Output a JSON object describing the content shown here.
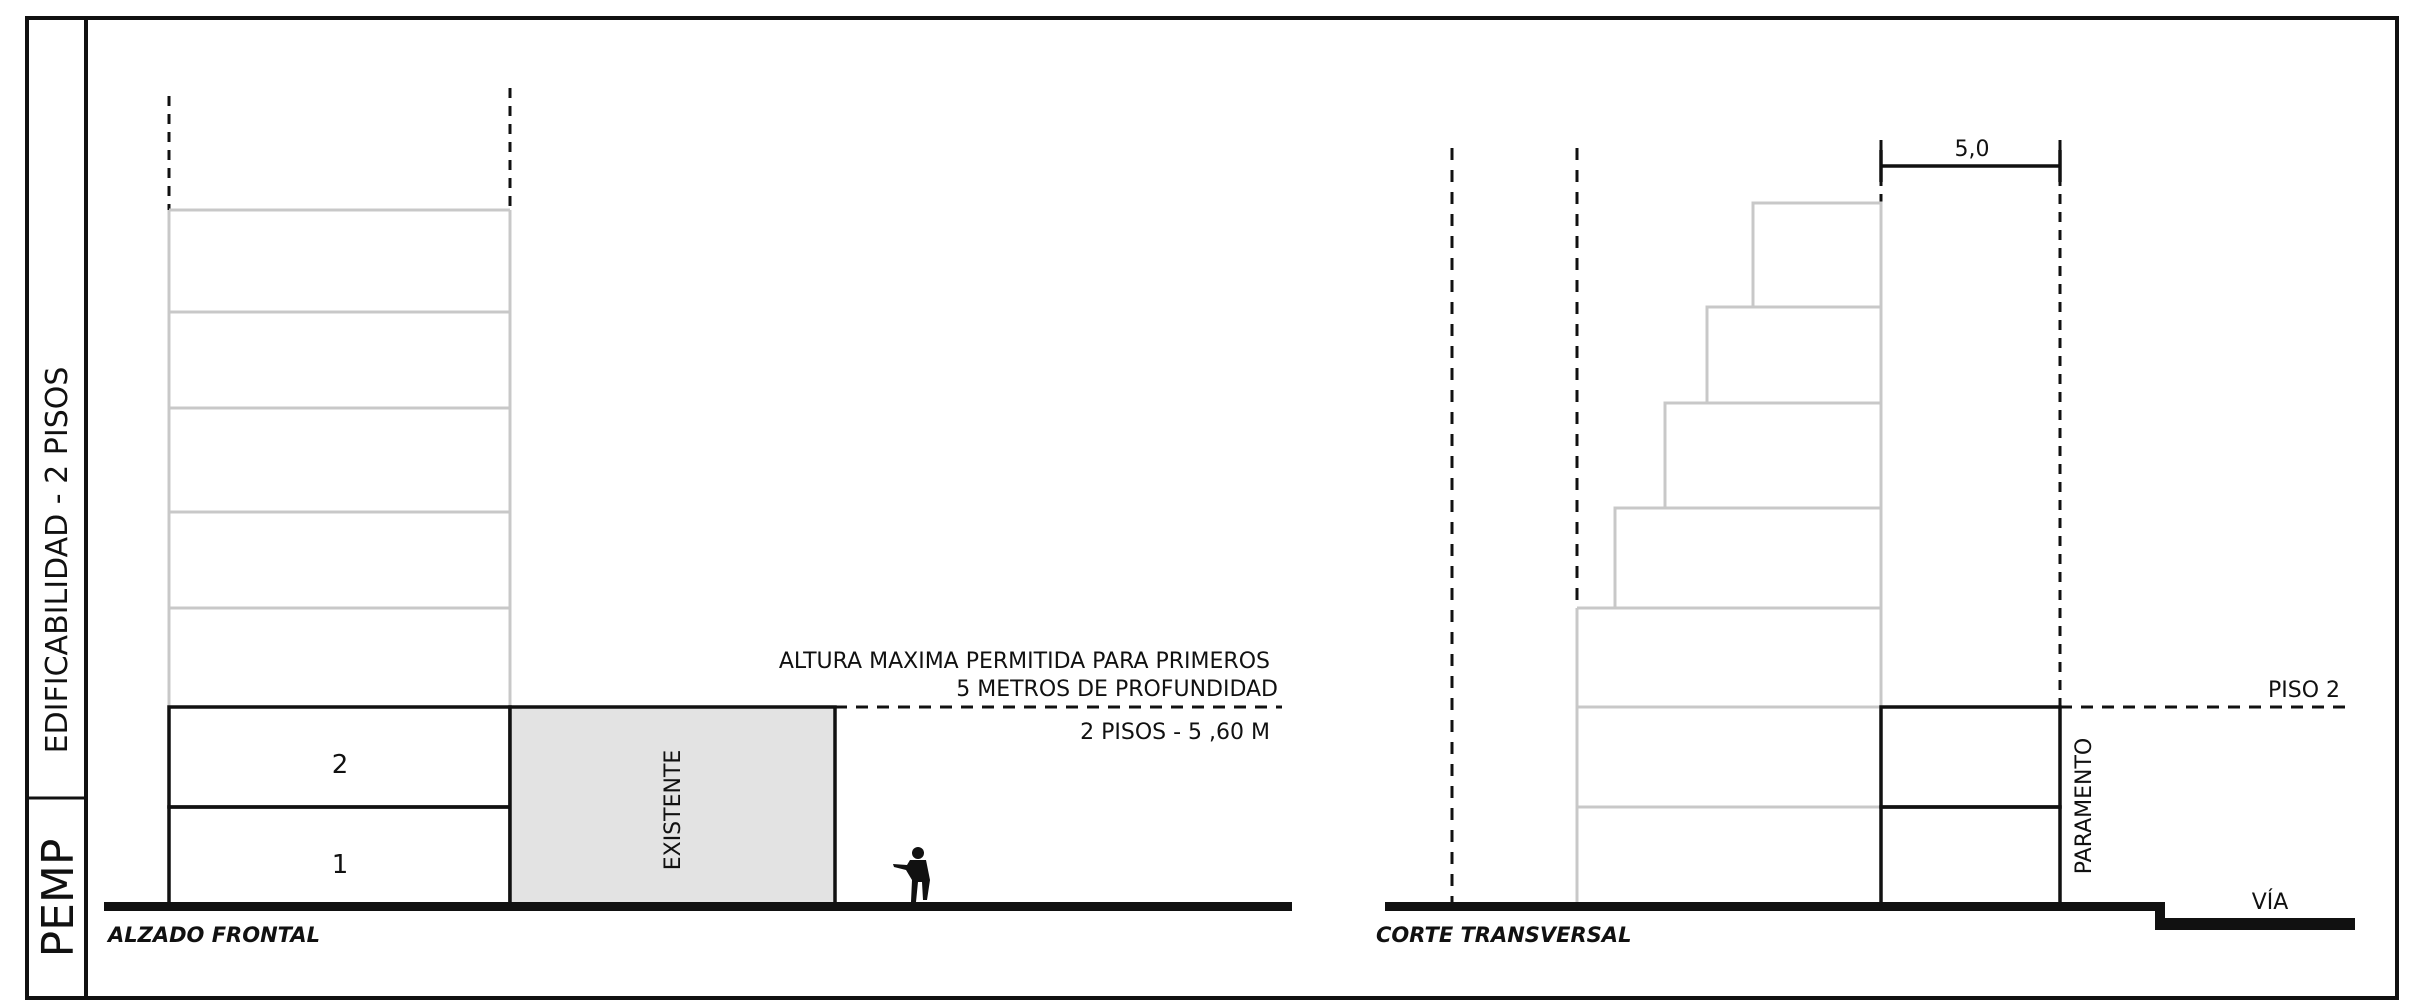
{
  "side": {
    "top_label": "EDIFICABILIDAD - 2 PISOS",
    "bottom_label": "PEMP"
  },
  "elevation": {
    "caption": "ALZADO FRONTAL",
    "floor_1": "1",
    "floor_2": "2",
    "existing_label": "EXISTENTE",
    "note_line_1": "ALTURA MAXIMA PERMITIDA PARA PRIMEROS",
    "note_line_2": "5 METROS DE PROFUNDIDAD",
    "height_label": "2 PISOS - 5 ,60 M"
  },
  "section": {
    "caption": "CORTE TRANSVERSAL",
    "dimension": "5,0",
    "level_label": "PISO 2",
    "facade_label": "PARAMENTO",
    "road_label": "VÍA"
  },
  "colors": {
    "frame": "#111111",
    "ghost_lines": "#c8c8c8",
    "existing_fill": "#e3e3e3"
  }
}
